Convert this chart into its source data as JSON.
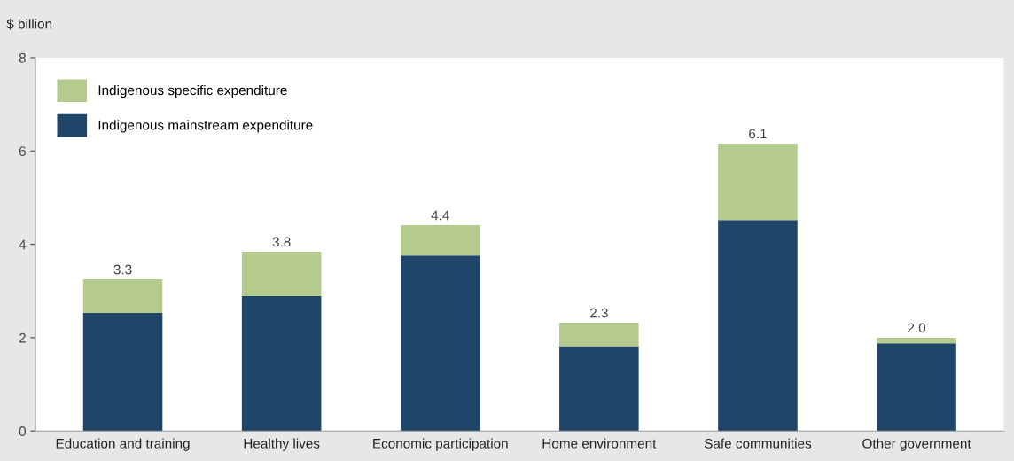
{
  "chart_data": {
    "type": "bar",
    "ylabel": "$ billion",
    "stacked": true,
    "categories": [
      "Education and training",
      "Healthy lives",
      "Economic participation",
      "Home environment",
      "Safe communities",
      "Other government"
    ],
    "series": [
      {
        "name": "Indigenous mainstream expenditure",
        "color": "#1f4569",
        "values": [
          2.53,
          2.89,
          3.76,
          1.82,
          4.52,
          1.88
        ]
      },
      {
        "name": "Indigenous specific expenditure",
        "color": "#b5cb8e",
        "values": [
          0.72,
          0.95,
          0.65,
          0.5,
          1.64,
          0.12
        ]
      }
    ],
    "totals": [
      "3.3",
      "3.8",
      "4.4",
      "2.3",
      "6.1",
      "2.0"
    ],
    "ylim": [
      0,
      8
    ],
    "yticks": [
      0,
      2,
      4,
      6,
      8
    ],
    "grid": false,
    "legend": "top left"
  }
}
